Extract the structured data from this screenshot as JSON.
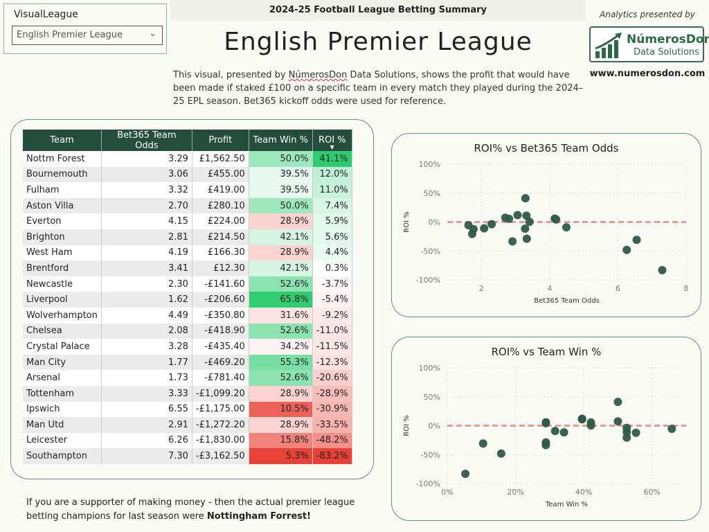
{
  "slicer": {
    "label": "VisualLeague",
    "value": "English Premier League"
  },
  "header": {
    "topbar": "2024-25 Football League Betting Summary",
    "title": "English Premier League",
    "desc_pre": "This visual, presented by ",
    "desc_brand": "NúmerosDon",
    "desc_post": " Data Solutions, shows the profit that would have been made if staked £100 on a specific team in every match they played during the 2024–25 EPL season. Bet365 kickoff odds were used for reference."
  },
  "brand": {
    "analytics": "Analytics presented by",
    "name": "NúmerosDon",
    "sub": "Data Solutions",
    "url": "www.numerosdon.com"
  },
  "table": {
    "columns": [
      "Team",
      "Bet365 Team Odds",
      "Profit",
      "Team Win %",
      "ROI %"
    ],
    "rows": [
      [
        "Nottm Forest",
        "3.29",
        "£1,562.50",
        "50.0%",
        "41.1%"
      ],
      [
        "Bournemouth",
        "3.06",
        "£455.00",
        "39.5%",
        "12.0%"
      ],
      [
        "Fulham",
        "3.32",
        "£419.00",
        "39.5%",
        "11.0%"
      ],
      [
        "Aston Villa",
        "2.70",
        "£280.10",
        "50.0%",
        "7.4%"
      ],
      [
        "Everton",
        "4.15",
        "£224.00",
        "28.9%",
        "5.9%"
      ],
      [
        "Brighton",
        "2.81",
        "£214.50",
        "42.1%",
        "5.6%"
      ],
      [
        "West Ham",
        "4.19",
        "£166.30",
        "28.9%",
        "4.4%"
      ],
      [
        "Brentford",
        "3.41",
        "£12.30",
        "42.1%",
        "0.3%"
      ],
      [
        "Newcastle",
        "2.30",
        "-£141.60",
        "52.6%",
        "-3.7%"
      ],
      [
        "Liverpool",
        "1.62",
        "-£206.60",
        "65.8%",
        "-5.4%"
      ],
      [
        "Wolverhampton",
        "4.49",
        "-£350.80",
        "31.6%",
        "-9.2%"
      ],
      [
        "Chelsea",
        "2.08",
        "-£418.90",
        "52.6%",
        "-11.0%"
      ],
      [
        "Crystal Palace",
        "3.28",
        "-£435.40",
        "34.2%",
        "-11.5%"
      ],
      [
        "Man City",
        "1.77",
        "-£469.20",
        "55.3%",
        "-12.3%"
      ],
      [
        "Arsenal",
        "1.73",
        "-£781.40",
        "52.6%",
        "-20.6%"
      ],
      [
        "Tottenham",
        "3.33",
        "-£1,099.20",
        "28.9%",
        "-28.9%"
      ],
      [
        "Ipswich",
        "6.55",
        "-£1,175.00",
        "10.5%",
        "-30.9%"
      ],
      [
        "Man Utd",
        "2.91",
        "-£1,272.20",
        "28.9%",
        "-33.5%"
      ],
      [
        "Leicester",
        "6.26",
        "-£1,830.00",
        "15.8%",
        "-48.2%"
      ],
      [
        "Southampton",
        "7.30",
        "-£3,162.50",
        "5.3%",
        "-83.2%"
      ]
    ]
  },
  "chart_data": [
    {
      "type": "scatter",
      "title": "ROI% vs Bet365 Team Odds",
      "xlabel": "Bet365 Team Odds",
      "ylabel": "ROI %",
      "xlim": [
        1,
        8
      ],
      "ylim": [
        -100,
        100
      ],
      "xticks": [
        "2",
        "4",
        "6",
        "8"
      ],
      "xtick_values": [
        2,
        4,
        6,
        8
      ],
      "yticks": [
        "100%",
        "50%",
        "0%",
        "-50%",
        "-100%"
      ],
      "ytick_values": [
        100,
        50,
        0,
        -50,
        -100
      ],
      "reference_line": 0,
      "x_field": 1
    },
    {
      "type": "scatter",
      "title": "ROI% vs Team Win %",
      "xlabel": "Team Win %",
      "ylabel": "ROI %",
      "xlim": [
        0,
        70
      ],
      "ylim": [
        -100,
        100
      ],
      "xticks": [
        "0%",
        "20%",
        "40%",
        "60%"
      ],
      "xtick_values": [
        0,
        20,
        40,
        60
      ],
      "yticks": [
        "100%",
        "50%",
        "0%",
        "-50%",
        "-100%"
      ],
      "ytick_values": [
        100,
        50,
        0,
        -50,
        -100
      ],
      "reference_line": 0,
      "x_field": 3
    }
  ],
  "colors": {
    "header": "#254d3c",
    "dot": "#2f5a45",
    "refline": "#e89a9a"
  },
  "footer": {
    "pre": "If you are a supporter of making money - then the actual premier league betting champions for last season were ",
    "bold": "Nottingham Forrest!"
  }
}
